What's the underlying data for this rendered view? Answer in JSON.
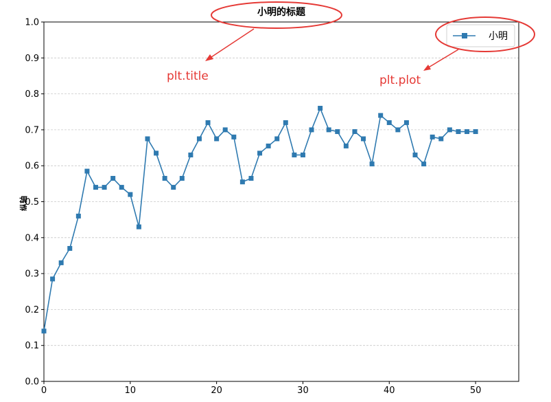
{
  "chart_data": {
    "type": "line",
    "title": "小明的标题",
    "xlabel": "",
    "ylabel": "纵轴",
    "xlim": [
      0,
      55
    ],
    "ylim": [
      0.0,
      1.0
    ],
    "xticks": [
      "0",
      "10",
      "20",
      "30",
      "40",
      "50"
    ],
    "yticks": [
      "0.0",
      "0.1",
      "0.2",
      "0.3",
      "0.4",
      "0.5",
      "0.6",
      "0.7",
      "0.8",
      "0.9",
      "1.0"
    ],
    "grid": "horizontal dashed",
    "legend_position": "top-right",
    "series": [
      {
        "name": "小明",
        "color": "#2f7ab0",
        "marker": "square",
        "x": [
          0,
          1,
          2,
          3,
          4,
          5,
          6,
          7,
          8,
          9,
          10,
          11,
          12,
          13,
          14,
          15,
          16,
          17,
          18,
          19,
          20,
          21,
          22,
          23,
          24,
          25,
          26,
          27,
          28,
          29,
          30,
          31,
          32,
          33,
          34,
          35,
          36,
          37,
          38,
          39,
          40,
          41,
          42,
          43,
          44,
          45,
          46,
          47,
          48,
          49,
          50
        ],
        "values": [
          0.14,
          0.285,
          0.33,
          0.37,
          0.46,
          0.585,
          0.54,
          0.54,
          0.565,
          0.54,
          0.52,
          0.43,
          0.675,
          0.635,
          0.565,
          0.54,
          0.565,
          0.63,
          0.675,
          0.72,
          0.675,
          0.7,
          0.68,
          0.555,
          0.565,
          0.635,
          0.655,
          0.675,
          0.72,
          0.63,
          0.63,
          0.7,
          0.76,
          0.7,
          0.695,
          0.655,
          0.695,
          0.675,
          0.605,
          0.74,
          0.72,
          0.7,
          0.72,
          0.63,
          0.605,
          0.68,
          0.675,
          0.7,
          0.695,
          0.695,
          0.695
        ]
      }
    ],
    "annotations": [
      {
        "text": "plt.title",
        "color": "#e53935"
      },
      {
        "text": "plt.plot",
        "color": "#e53935"
      }
    ]
  }
}
